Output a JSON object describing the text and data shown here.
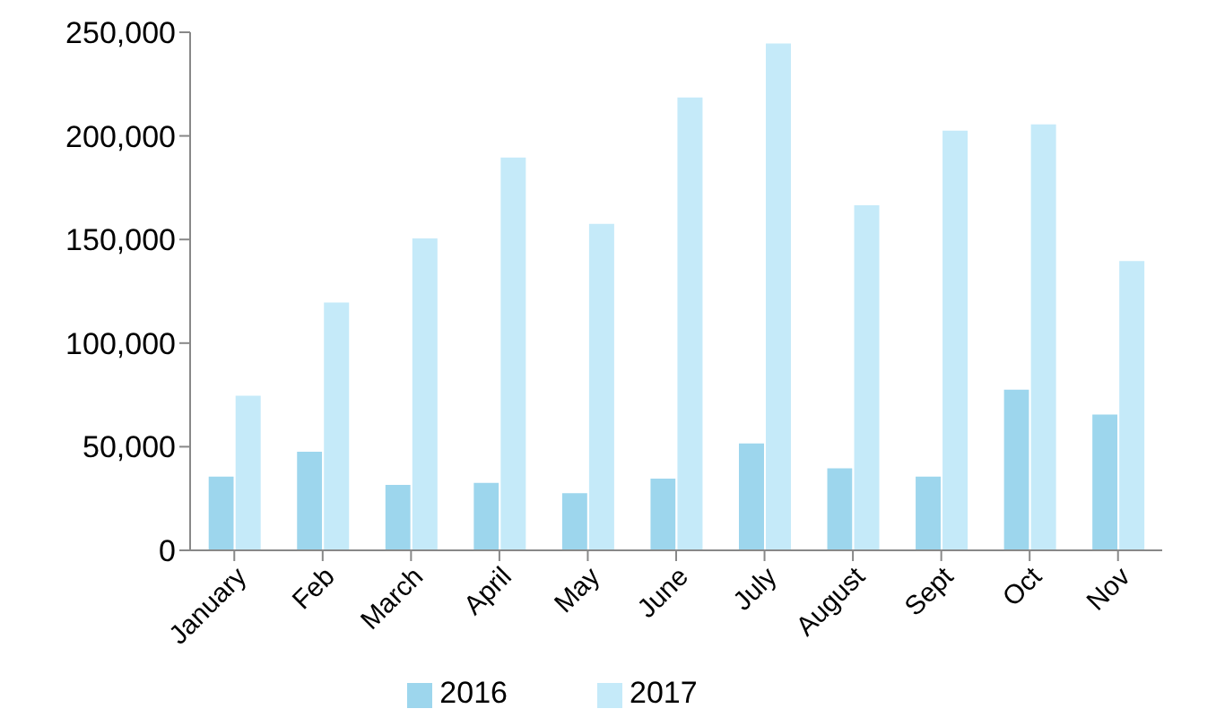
{
  "chart_data": {
    "type": "bar",
    "categories": [
      "January",
      "Feb",
      "March",
      "April",
      "May",
      "June",
      "July",
      "August",
      "Sept",
      "Oct",
      "Nov"
    ],
    "series": [
      {
        "name": "2016",
        "color": "#9dd6ed",
        "values": [
          36000,
          48000,
          32000,
          33000,
          28000,
          35000,
          52000,
          40000,
          36000,
          78000,
          66000
        ]
      },
      {
        "name": "2017",
        "color": "#c5eaf9",
        "values": [
          75000,
          120000,
          151000,
          190000,
          158000,
          219000,
          245000,
          167000,
          203000,
          206000,
          140000
        ]
      }
    ],
    "ylim": [
      0,
      250000
    ],
    "yticks": [
      0,
      {
        "value": 50000,
        "label": "50,000"
      },
      {
        "value": 100000,
        "label": "100,000"
      },
      {
        "value": 150000,
        "label": "150,000"
      },
      {
        "value": 200000,
        "label": "200,000"
      },
      {
        "value": 250000,
        "label": "250,000"
      }
    ],
    "grid": false,
    "legend": "bottom"
  }
}
